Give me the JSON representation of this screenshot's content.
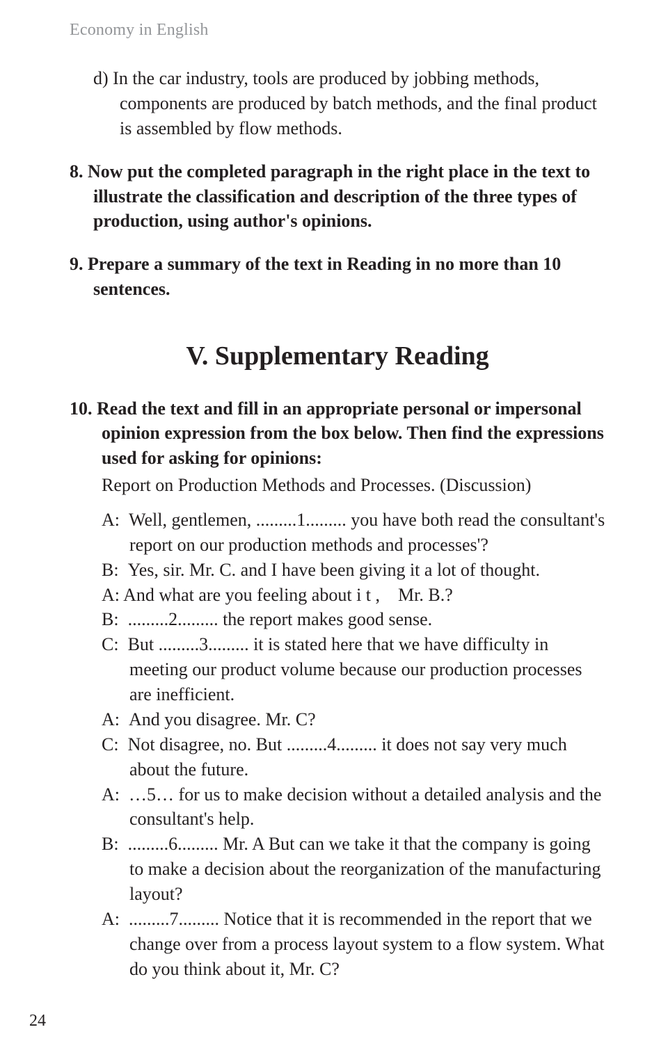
{
  "header": {
    "running_title": "Economy in English"
  },
  "items": {
    "d": {
      "marker": "d)",
      "text": "In the car industry, tools are produced by jobbing methods, components are produced by batch methods, and the final product is assembled by flow methods."
    },
    "n8": {
      "marker": "8.",
      "text": "Now put the completed paragraph in the right place in the text to illustrate the classification and description of the three types of production, using author's opinions."
    },
    "n9": {
      "marker": "9.",
      "text": "Prepare a summary of the text in Reading in no more than 10 sentences."
    }
  },
  "section": {
    "heading": "V. Supplementary Reading"
  },
  "q10": {
    "marker": "10.",
    "lead": "Read the text and fill in an appropriate personal or impersonal opinion expression from the box below. Then find the expressions used for asking for opinions:",
    "sub": "Report on Production Methods and Processes. (Discussion)"
  },
  "dialogue": {
    "l1": "A: Well, gentlemen, .........1......... you have both read the consultant's report on our production methods and processes'?",
    "l2": "B: Yes, sir. Mr. C. and I have been giving it a lot of thought.",
    "l3": "A: And what are you feeling about i t , Mr. B.?",
    "l4": "B: .........2......... the report makes good sense.",
    "l5": "C: But .........3......... it is stated here that we have difficulty in meeting our product volume because our production processes are inefficient.",
    "l6": "A: And you disagree. Mr. C?",
    "l7": "C: Not disagree, no. But .........4......... it does not say very much about the future.",
    "l8": "A: …5… for us to make decision without a detailed analysis and the consultant's help.",
    "l9": "B: .........6......... Mr. A But can we take it that the company is going to make a decision about the reorganization of the manufacturing layout?",
    "l10": "A: .........7......... Notice that it is recommended in the report that we change over from a process layout system to a flow system. What do you think about it, Mr. C?"
  },
  "page_number": "24"
}
